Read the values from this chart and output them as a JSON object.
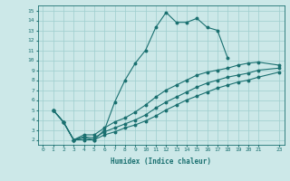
{
  "xlabel": "Humidex (Indice chaleur)",
  "ylabel": "",
  "xlim": [
    -0.5,
    23.5
  ],
  "ylim": [
    1.5,
    15.5
  ],
  "xtick_labels": [
    "0",
    "1",
    "2",
    "3",
    "4",
    "5",
    "6",
    "7",
    "8",
    "9",
    "10",
    "11",
    "12",
    "13",
    "14",
    "15",
    "16",
    "17",
    "18",
    "19",
    "20",
    "21",
    "23"
  ],
  "xtick_vals": [
    0,
    1,
    2,
    3,
    4,
    5,
    6,
    7,
    8,
    9,
    10,
    11,
    12,
    13,
    14,
    15,
    16,
    17,
    18,
    19,
    20,
    21,
    23
  ],
  "ytick_vals": [
    2,
    3,
    4,
    5,
    6,
    7,
    8,
    9,
    10,
    11,
    12,
    13,
    14,
    15
  ],
  "line_color": "#1a7070",
  "background_color": "#cce8e8",
  "grid_color": "#9ecece",
  "lines": [
    {
      "x": [
        1,
        2,
        3,
        4,
        5,
        6,
        7,
        8,
        9,
        10,
        11,
        12,
        13,
        14,
        15,
        16,
        17,
        18
      ],
      "y": [
        5.0,
        3.8,
        2.0,
        2.0,
        2.0,
        3.0,
        5.8,
        8.0,
        9.7,
        11.0,
        13.3,
        14.8,
        13.8,
        13.8,
        14.2,
        13.3,
        13.0,
        10.2
      ]
    },
    {
      "x": [
        1,
        2,
        3,
        4,
        5,
        6,
        7,
        8,
        9,
        10,
        11,
        12,
        13,
        14,
        15,
        16,
        17,
        18,
        19,
        20,
        21,
        23
      ],
      "y": [
        5.0,
        3.8,
        2.0,
        2.5,
        2.5,
        3.2,
        3.8,
        4.2,
        4.8,
        5.5,
        6.3,
        7.0,
        7.5,
        8.0,
        8.5,
        8.8,
        9.0,
        9.2,
        9.5,
        9.7,
        9.8,
        9.5
      ]
    },
    {
      "x": [
        1,
        2,
        3,
        4,
        5,
        6,
        7,
        8,
        9,
        10,
        11,
        12,
        13,
        14,
        15,
        16,
        17,
        18,
        19,
        20,
        21,
        23
      ],
      "y": [
        5.0,
        3.8,
        2.0,
        2.3,
        2.2,
        2.8,
        3.2,
        3.6,
        4.0,
        4.5,
        5.2,
        5.8,
        6.3,
        6.8,
        7.3,
        7.7,
        8.0,
        8.3,
        8.5,
        8.7,
        9.0,
        9.2
      ]
    },
    {
      "x": [
        1,
        2,
        3,
        4,
        5,
        6,
        7,
        8,
        9,
        10,
        11,
        12,
        13,
        14,
        15,
        16,
        17,
        18,
        19,
        20,
        21,
        23
      ],
      "y": [
        5.0,
        3.8,
        2.0,
        2.2,
        2.0,
        2.5,
        2.8,
        3.2,
        3.5,
        3.9,
        4.4,
        5.0,
        5.5,
        6.0,
        6.4,
        6.8,
        7.2,
        7.5,
        7.8,
        8.0,
        8.3,
        8.8
      ]
    }
  ]
}
